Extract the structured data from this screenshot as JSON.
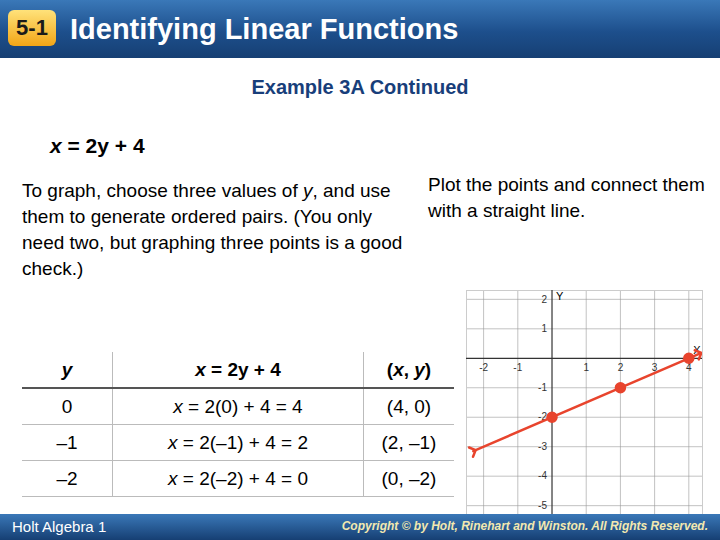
{
  "header": {
    "badge": "5-1",
    "title": "Identifying Linear Functions"
  },
  "subtitle": "Example 3A Continued",
  "equation": "x = 2y + 4",
  "instructions": "To graph, choose three values of y, and use them to generate ordered pairs. (You only need two, but graphing three points is a good check.)",
  "plot_instructions": "Plot the points and connect them with a straight line.",
  "table": {
    "rows": [
      [
        "y",
        "x = 2y + 4",
        "(x, y)"
      ],
      [
        "0",
        "x = 2(0) + 4 = 4",
        "(4, 0)"
      ],
      [
        "–1",
        "x = 2(–1) + 4 = 2",
        "(2, –1)"
      ],
      [
        "–2",
        "x = 2(–2) + 4 = 0",
        "(0, –2)"
      ]
    ]
  },
  "chart_data": {
    "type": "line",
    "x_label": "X",
    "y_label": "Y",
    "color": "#e8442d",
    "marker": "arrow",
    "grid": true,
    "line": {
      "x": [
        -2.3,
        4.3
      ],
      "y": [
        -3.15,
        0.15
      ]
    },
    "points": {
      "x": [
        4,
        2,
        0
      ],
      "y": [
        0,
        -1,
        -2
      ]
    },
    "xlim": [
      -2.5,
      4.4
    ],
    "ylim": [
      -5.3,
      2.3
    ],
    "xticks": [
      -2,
      -1,
      1,
      2,
      3,
      4
    ],
    "yticks": [
      2,
      1,
      -1,
      -2,
      -3,
      -4,
      -5
    ]
  },
  "footer": {
    "left": "Holt Algebra 1",
    "right": "Copyright © by Holt, Rinehart and Winston. All Rights Reserved."
  }
}
